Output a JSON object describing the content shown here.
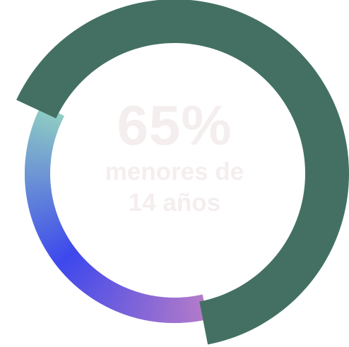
{
  "chart_data": {
    "type": "pie",
    "variant": "donut",
    "highlight": {
      "value": "65%",
      "label": "menores de 14 años"
    },
    "slices": [
      {
        "value": 65,
        "color": "#437062"
      },
      {
        "value": 35,
        "gradient": [
          "#b47bc9",
          "#3d48ec",
          "#8fcdc3"
        ]
      }
    ],
    "colors": {
      "primary": "#437062",
      "center_text": "#f4eeee"
    }
  }
}
